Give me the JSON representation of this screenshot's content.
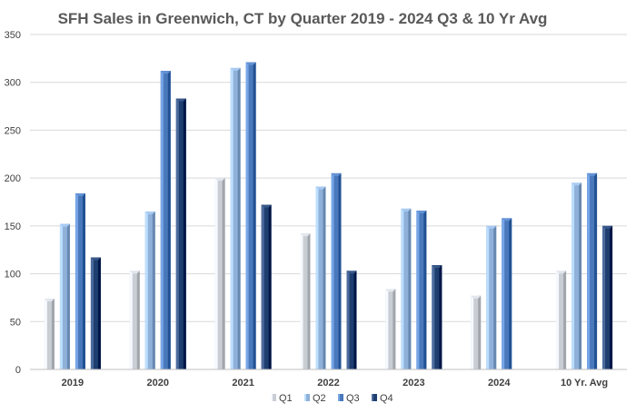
{
  "chart_data": {
    "type": "bar",
    "title": "SFH Sales in Greenwich, CT by Quarter 2019 - 2024 Q3 & 10 Yr Avg",
    "xlabel": "",
    "ylabel": "",
    "ylim": [
      0,
      350
    ],
    "yticks": [
      "0",
      "50",
      "100",
      "150",
      "200",
      "250",
      "300",
      "350"
    ],
    "categories": [
      "2019",
      "2020",
      "2021",
      "2022",
      "2023",
      "2024",
      "10 Yr. Avg"
    ],
    "grid": true,
    "legend_position": "bottom",
    "series": [
      {
        "name": "Q1",
        "color": "#c9cdd4",
        "values": [
          74,
          103,
          200,
          142,
          84,
          77,
          103
        ]
      },
      {
        "name": "Q2",
        "color": "#8fb1d9",
        "values": [
          152,
          165,
          315,
          191,
          168,
          150,
          195
        ]
      },
      {
        "name": "Q3",
        "color": "#4a79bb",
        "values": [
          184,
          312,
          321,
          205,
          166,
          158,
          205
        ]
      },
      {
        "name": "Q4",
        "color": "#1f3e70",
        "values": [
          117,
          283,
          172,
          103,
          109,
          null,
          150
        ]
      }
    ]
  }
}
